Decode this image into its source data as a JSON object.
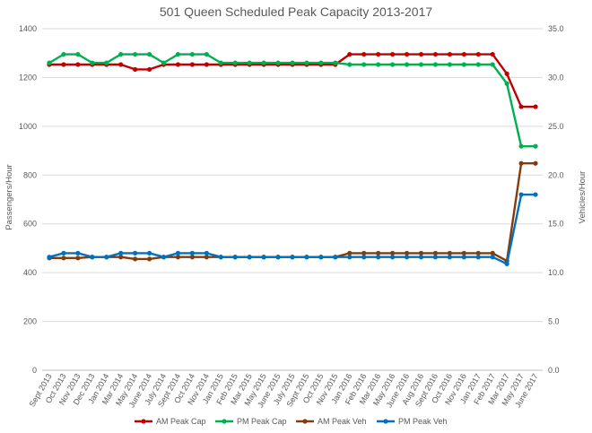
{
  "chart_data": {
    "type": "line",
    "title": "501 Queen Scheduled Peak Capacity 2013-2017",
    "ylabel": "Passengers/Hour",
    "y2label": "Vehicles/Hour",
    "ylim": [
      0,
      1400
    ],
    "y2lim": [
      0,
      35
    ],
    "yticks": [
      "0",
      "200",
      "400",
      "600",
      "800",
      "1000",
      "1200",
      "1400"
    ],
    "y2ticks": [
      "0.0",
      "5.0",
      "10.0",
      "15.0",
      "20.0",
      "25.0",
      "30.0",
      "35.0"
    ],
    "grid": true,
    "legend_position": "bottom",
    "categories": [
      "Sept 2013",
      "Oct 2013",
      "Nov 2013",
      "Dec 2013",
      "Jan 2014",
      "Mar 2014",
      "May 2014",
      "June 2014",
      "July 2014",
      "Sept 2014",
      "Oct 2014",
      "Nov 2014",
      "Jan 2015",
      "Feb 2015",
      "Mar 2015",
      "May 2015",
      "June 2015",
      "July 2015",
      "Sept 2015",
      "Oct 2015",
      "Nov 2015",
      "Jan 2016",
      "Feb 2016",
      "Mar 2016",
      "May 2016",
      "June 2016",
      "Aug 2016",
      "Sept 2016",
      "Oct 2016",
      "Nov 2016",
      "Jan 2017",
      "Feb 2017",
      "Mar 2017",
      "May 2017",
      "June 2017"
    ],
    "series": [
      {
        "name": "AM Peak Cap",
        "axis": "left",
        "color": "#c00000",
        "values": [
          1253,
          1253,
          1253,
          1253,
          1253,
          1253,
          1233,
          1233,
          1253,
          1253,
          1253,
          1253,
          1253,
          1253,
          1253,
          1253,
          1253,
          1253,
          1253,
          1253,
          1253,
          1295,
          1295,
          1295,
          1295,
          1295,
          1295,
          1295,
          1295,
          1295,
          1295,
          1295,
          1215,
          1080,
          1080
        ]
      },
      {
        "name": "PM Peak Cap",
        "axis": "left",
        "color": "#00b050",
        "values": [
          1260,
          1295,
          1295,
          1260,
          1260,
          1295,
          1295,
          1295,
          1260,
          1295,
          1295,
          1295,
          1260,
          1260,
          1260,
          1260,
          1260,
          1260,
          1260,
          1260,
          1260,
          1253,
          1253,
          1253,
          1253,
          1253,
          1253,
          1253,
          1253,
          1253,
          1253,
          1253,
          1175,
          918,
          918
        ]
      },
      {
        "name": "AM Peak Veh",
        "axis": "right",
        "color": "#843c0c",
        "values": [
          11.5,
          11.5,
          11.5,
          11.6,
          11.6,
          11.6,
          11.4,
          11.4,
          11.6,
          11.6,
          11.6,
          11.6,
          11.6,
          11.6,
          11.6,
          11.6,
          11.6,
          11.6,
          11.6,
          11.6,
          11.6,
          12.0,
          12.0,
          12.0,
          12.0,
          12.0,
          12.0,
          12.0,
          12.0,
          12.0,
          12.0,
          12.0,
          11.2,
          21.2,
          21.2
        ]
      },
      {
        "name": "PM Peak Veh",
        "axis": "right",
        "color": "#0070c0",
        "values": [
          11.6,
          12.0,
          12.0,
          11.6,
          11.6,
          12.0,
          12.0,
          12.0,
          11.6,
          12.0,
          12.0,
          12.0,
          11.6,
          11.6,
          11.6,
          11.6,
          11.6,
          11.6,
          11.6,
          11.6,
          11.6,
          11.6,
          11.6,
          11.6,
          11.6,
          11.6,
          11.6,
          11.6,
          11.6,
          11.6,
          11.6,
          11.6,
          10.9,
          18.0,
          18.0
        ]
      }
    ]
  }
}
